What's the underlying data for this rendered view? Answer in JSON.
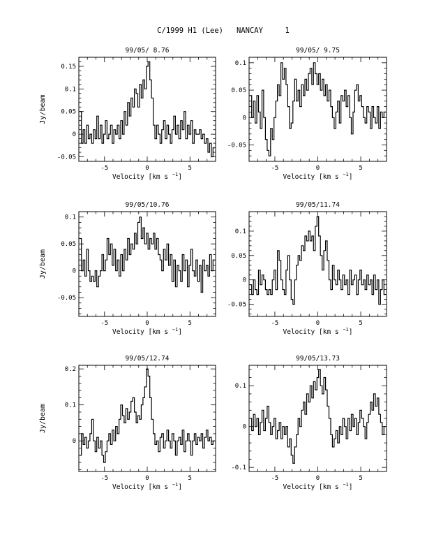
{
  "page": {
    "title": "C/1999 H1 (Lee)   NANCAY     1"
  },
  "axes": {
    "xlabel_main": "Velocity [km s",
    "xlabel_exp": "−1",
    "xlabel_close": "]",
    "ylabel": "Jy/beam"
  },
  "chart_data": [
    {
      "type": "line",
      "step": true,
      "title": "99/05/ 8.76",
      "xlim": [
        -8,
        8
      ],
      "ylim": [
        -0.06,
        0.17
      ],
      "xticks": [
        -5,
        0,
        5
      ],
      "yticks": [
        -0.05,
        0,
        0.05,
        0.1,
        0.15
      ],
      "ytick_labels": [
        "-0.05",
        "0",
        "0.05",
        "0.1",
        "0.15"
      ],
      "x": [
        -7.8,
        -7.6,
        -7.4,
        -7.2,
        -7.0,
        -6.8,
        -6.6,
        -6.4,
        -6.2,
        -6.0,
        -5.8,
        -5.6,
        -5.4,
        -5.2,
        -5.0,
        -4.8,
        -4.6,
        -4.4,
        -4.2,
        -4.0,
        -3.8,
        -3.6,
        -3.4,
        -3.2,
        -3.0,
        -2.8,
        -2.6,
        -2.4,
        -2.2,
        -2.0,
        -1.8,
        -1.6,
        -1.4,
        -1.2,
        -1.0,
        -0.8,
        -0.6,
        -0.4,
        -0.2,
        0.0,
        0.2,
        0.4,
        0.6,
        0.8,
        1.0,
        1.2,
        1.4,
        1.6,
        1.8,
        2.0,
        2.2,
        2.4,
        2.6,
        2.8,
        3.0,
        3.2,
        3.4,
        3.6,
        3.8,
        4.0,
        4.2,
        4.4,
        4.6,
        4.8,
        5.0,
        5.2,
        5.4,
        5.6,
        5.8,
        6.0,
        6.2,
        6.4,
        6.6,
        6.8,
        7.0,
        7.2,
        7.4,
        7.6,
        7.8
      ],
      "y": [
        0.05,
        -0.02,
        0.01,
        -0.02,
        0.02,
        -0.01,
        0.0,
        -0.02,
        0.01,
        -0.01,
        0.04,
        -0.01,
        0.02,
        -0.02,
        0.0,
        0.03,
        -0.01,
        0.0,
        0.02,
        -0.02,
        0.01,
        0.0,
        0.02,
        -0.01,
        0.03,
        0.0,
        0.05,
        0.02,
        0.07,
        0.04,
        0.08,
        0.06,
        0.1,
        0.09,
        0.06,
        0.11,
        0.08,
        0.12,
        0.1,
        0.15,
        0.16,
        0.12,
        0.08,
        0.02,
        -0.01,
        0.02,
        0.0,
        -0.02,
        0.01,
        0.03,
        -0.01,
        0.02,
        0.0,
        -0.02,
        0.01,
        0.04,
        0.0,
        0.02,
        -0.01,
        0.03,
        0.01,
        0.05,
        -0.01,
        0.02,
        0.0,
        0.03,
        -0.02,
        0.01,
        0.0,
        0.0,
        0.01,
        -0.01,
        0.0,
        -0.02,
        -0.01,
        -0.04,
        -0.02,
        -0.05,
        -0.03
      ]
    },
    {
      "type": "line",
      "step": true,
      "title": "99/05/ 9.75",
      "xlim": [
        -8,
        8
      ],
      "ylim": [
        -0.08,
        0.11
      ],
      "xticks": [
        -5,
        0,
        5
      ],
      "yticks": [
        -0.05,
        0,
        0.05,
        0.1
      ],
      "ytick_labels": [
        "-0.05",
        "0",
        "0.05",
        "0.1"
      ],
      "x": [
        -7.8,
        -7.6,
        -7.4,
        -7.2,
        -7.0,
        -6.8,
        -6.6,
        -6.4,
        -6.2,
        -6.0,
        -5.8,
        -5.6,
        -5.4,
        -5.2,
        -5.0,
        -4.8,
        -4.6,
        -4.4,
        -4.2,
        -4.0,
        -3.8,
        -3.6,
        -3.4,
        -3.2,
        -3.0,
        -2.8,
        -2.6,
        -2.4,
        -2.2,
        -2.0,
        -1.8,
        -1.6,
        -1.4,
        -1.2,
        -1.0,
        -0.8,
        -0.6,
        -0.4,
        -0.2,
        0.0,
        0.2,
        0.4,
        0.6,
        0.8,
        1.0,
        1.2,
        1.4,
        1.6,
        1.8,
        2.0,
        2.2,
        2.4,
        2.6,
        2.8,
        3.0,
        3.2,
        3.4,
        3.6,
        3.8,
        4.0,
        4.2,
        4.4,
        4.6,
        4.8,
        5.0,
        5.2,
        5.4,
        5.6,
        5.8,
        6.0,
        6.2,
        6.4,
        6.6,
        6.8,
        7.0,
        7.2,
        7.4,
        7.6,
        7.8
      ],
      "y": [
        0.04,
        0.0,
        0.03,
        -0.01,
        0.04,
        0.01,
        -0.02,
        0.05,
        0.0,
        -0.04,
        -0.06,
        -0.07,
        -0.02,
        -0.04,
        0.0,
        0.03,
        0.06,
        0.04,
        0.1,
        0.07,
        0.09,
        0.06,
        0.02,
        -0.02,
        -0.01,
        0.03,
        0.07,
        0.03,
        0.05,
        0.02,
        0.06,
        0.04,
        0.07,
        0.05,
        0.08,
        0.09,
        0.06,
        0.1,
        0.08,
        0.06,
        0.08,
        0.05,
        0.07,
        0.04,
        0.06,
        0.03,
        0.05,
        0.02,
        0.0,
        -0.02,
        0.01,
        0.03,
        -0.01,
        0.04,
        0.03,
        0.05,
        0.02,
        0.04,
        0.0,
        -0.03,
        0.01,
        0.05,
        0.06,
        0.03,
        0.04,
        0.02,
        0.0,
        -0.01,
        0.02,
        0.01,
        -0.02,
        0.02,
        0.0,
        -0.01,
        0.02,
        -0.02,
        0.01,
        0.0,
        0.01
      ]
    },
    {
      "type": "line",
      "step": true,
      "title": "99/05/10.76",
      "xlim": [
        -8,
        8
      ],
      "ylim": [
        -0.085,
        0.11
      ],
      "xticks": [
        -5,
        0,
        5
      ],
      "yticks": [
        -0.05,
        0,
        0.05,
        0.1
      ],
      "ytick_labels": [
        "-0.05",
        "0",
        "0.05",
        "0.1"
      ],
      "x": [
        -7.8,
        -7.6,
        -7.4,
        -7.2,
        -7.0,
        -6.8,
        -6.6,
        -6.4,
        -6.2,
        -6.0,
        -5.8,
        -5.6,
        -5.4,
        -5.2,
        -5.0,
        -4.8,
        -4.6,
        -4.4,
        -4.2,
        -4.0,
        -3.8,
        -3.6,
        -3.4,
        -3.2,
        -3.0,
        -2.8,
        -2.6,
        -2.4,
        -2.2,
        -2.0,
        -1.8,
        -1.6,
        -1.4,
        -1.2,
        -1.0,
        -0.8,
        -0.6,
        -0.4,
        -0.2,
        0.0,
        0.2,
        0.4,
        0.6,
        0.8,
        1.0,
        1.2,
        1.4,
        1.6,
        1.8,
        2.0,
        2.2,
        2.4,
        2.6,
        2.8,
        3.0,
        3.2,
        3.4,
        3.6,
        3.8,
        4.0,
        4.2,
        4.4,
        4.6,
        4.8,
        5.0,
        5.2,
        5.4,
        5.6,
        5.8,
        6.0,
        6.2,
        6.4,
        6.6,
        6.8,
        7.0,
        7.2,
        7.4,
        7.6,
        7.8
      ],
      "y": [
        0.06,
        0.0,
        0.02,
        -0.01,
        0.04,
        0.0,
        -0.02,
        -0.01,
        -0.02,
        0.0,
        -0.03,
        -0.01,
        0.0,
        0.03,
        0.0,
        0.02,
        0.06,
        0.03,
        0.05,
        0.01,
        0.04,
        0.0,
        0.02,
        -0.01,
        0.03,
        0.0,
        0.04,
        0.02,
        0.06,
        0.03,
        0.05,
        0.04,
        0.07,
        0.05,
        0.09,
        0.1,
        0.06,
        0.08,
        0.05,
        0.07,
        0.04,
        0.06,
        0.05,
        0.07,
        0.04,
        0.06,
        0.03,
        0.02,
        0.0,
        0.04,
        0.02,
        0.05,
        0.01,
        0.03,
        -0.02,
        0.02,
        -0.03,
        0.01,
        0.0,
        -0.02,
        0.03,
        0.0,
        0.02,
        -0.03,
        0.01,
        0.04,
        0.0,
        -0.01,
        0.02,
        -0.02,
        0.01,
        -0.04,
        0.02,
        0.0,
        0.01,
        -0.01,
        0.03,
        0.0,
        0.02
      ]
    },
    {
      "type": "line",
      "step": true,
      "title": "99/05/11.74",
      "xlim": [
        -8,
        8
      ],
      "ylim": [
        -0.075,
        0.14
      ],
      "xticks": [
        -5,
        0,
        5
      ],
      "yticks": [
        -0.05,
        0,
        0.05,
        0.1
      ],
      "ytick_labels": [
        "-0.05",
        "0",
        "0.05",
        "0.1"
      ],
      "x": [
        -7.8,
        -7.6,
        -7.4,
        -7.2,
        -7.0,
        -6.8,
        -6.6,
        -6.4,
        -6.2,
        -6.0,
        -5.8,
        -5.6,
        -5.4,
        -5.2,
        -5.0,
        -4.8,
        -4.6,
        -4.4,
        -4.2,
        -4.0,
        -3.8,
        -3.6,
        -3.4,
        -3.2,
        -3.0,
        -2.8,
        -2.6,
        -2.4,
        -2.2,
        -2.0,
        -1.8,
        -1.6,
        -1.4,
        -1.2,
        -1.0,
        -0.8,
        -0.6,
        -0.4,
        -0.2,
        0.0,
        0.2,
        0.4,
        0.6,
        0.8,
        1.0,
        1.2,
        1.4,
        1.6,
        1.8,
        2.0,
        2.2,
        2.4,
        2.6,
        2.8,
        3.0,
        3.2,
        3.4,
        3.6,
        3.8,
        4.0,
        4.2,
        4.4,
        4.6,
        4.8,
        5.0,
        5.2,
        5.4,
        5.6,
        5.8,
        6.0,
        6.2,
        6.4,
        6.6,
        6.8,
        7.0,
        7.2,
        7.4,
        7.6,
        7.8
      ],
      "y": [
        -0.01,
        -0.03,
        0.0,
        -0.02,
        -0.03,
        0.02,
        -0.01,
        0.01,
        0.0,
        -0.02,
        -0.03,
        -0.02,
        -0.03,
        0.0,
        0.02,
        -0.02,
        0.06,
        0.04,
        0.0,
        -0.02,
        -0.03,
        0.02,
        0.05,
        0.0,
        -0.04,
        -0.05,
        0.0,
        0.03,
        0.05,
        0.04,
        0.07,
        0.06,
        0.09,
        0.08,
        0.1,
        0.08,
        0.09,
        0.06,
        0.11,
        0.13,
        0.09,
        0.05,
        0.02,
        0.06,
        0.08,
        0.04,
        0.0,
        -0.02,
        0.03,
        0.0,
        -0.01,
        0.02,
        0.0,
        -0.02,
        0.01,
        -0.01,
        0.0,
        -0.03,
        0.02,
        -0.01,
        0.0,
        0.01,
        -0.03,
        0.0,
        0.02,
        -0.01,
        0.0,
        -0.02,
        0.01,
        -0.01,
        0.0,
        -0.03,
        0.01,
        -0.02,
        0.0,
        -0.05,
        -0.02,
        0.0,
        -0.03
      ]
    },
    {
      "type": "line",
      "step": true,
      "title": "99/05/12.74",
      "xlim": [
        -8,
        8
      ],
      "ylim": [
        -0.085,
        0.21
      ],
      "xticks": [
        -5,
        0,
        5
      ],
      "yticks": [
        0,
        0.1,
        0.2
      ],
      "ytick_labels": [
        "0",
        "0.1",
        "0.2"
      ],
      "x": [
        -7.8,
        -7.6,
        -7.4,
        -7.2,
        -7.0,
        -6.8,
        -6.6,
        -6.4,
        -6.2,
        -6.0,
        -5.8,
        -5.6,
        -5.4,
        -5.2,
        -5.0,
        -4.8,
        -4.6,
        -4.4,
        -4.2,
        -4.0,
        -3.8,
        -3.6,
        -3.4,
        -3.2,
        -3.0,
        -2.8,
        -2.6,
        -2.4,
        -2.2,
        -2.0,
        -1.8,
        -1.6,
        -1.4,
        -1.2,
        -1.0,
        -0.8,
        -0.6,
        -0.4,
        -0.2,
        0.0,
        0.2,
        0.4,
        0.6,
        0.8,
        1.0,
        1.2,
        1.4,
        1.6,
        1.8,
        2.0,
        2.2,
        2.4,
        2.6,
        2.8,
        3.0,
        3.2,
        3.4,
        3.6,
        3.8,
        4.0,
        4.2,
        4.4,
        4.6,
        4.8,
        5.0,
        5.2,
        5.4,
        5.6,
        5.8,
        6.0,
        6.2,
        6.4,
        6.6,
        6.8,
        7.0,
        7.2,
        7.4,
        7.6,
        7.8
      ],
      "y": [
        -0.04,
        0.02,
        -0.01,
        0.01,
        -0.02,
        0.0,
        0.02,
        0.06,
        0.0,
        -0.03,
        0.01,
        -0.02,
        0.0,
        -0.04,
        -0.06,
        -0.03,
        0.0,
        0.02,
        -0.01,
        0.03,
        0.0,
        0.04,
        0.02,
        0.06,
        0.1,
        0.07,
        0.05,
        0.09,
        0.06,
        0.08,
        0.11,
        0.12,
        0.08,
        0.05,
        0.07,
        0.06,
        0.1,
        0.12,
        0.15,
        0.2,
        0.18,
        0.12,
        0.06,
        0.02,
        -0.01,
        0.0,
        -0.03,
        0.01,
        0.02,
        -0.02,
        0.0,
        0.03,
        0.0,
        -0.02,
        0.02,
        0.0,
        -0.04,
        0.0,
        0.01,
        -0.01,
        0.03,
        -0.03,
        0.0,
        0.02,
        0.0,
        -0.04,
        0.0,
        0.02,
        -0.01,
        0.01,
        0.0,
        0.02,
        -0.02,
        0.01,
        0.03,
        0.0,
        0.01,
        -0.01,
        0.0
      ]
    },
    {
      "type": "line",
      "step": true,
      "title": "99/05/13.73",
      "xlim": [
        -8,
        8
      ],
      "ylim": [
        -0.11,
        0.15
      ],
      "xticks": [
        -5,
        0,
        5
      ],
      "yticks": [
        -0.1,
        0,
        0.1
      ],
      "ytick_labels": [
        "-0.1",
        "0",
        "0.1"
      ],
      "x": [
        -7.8,
        -7.6,
        -7.4,
        -7.2,
        -7.0,
        -6.8,
        -6.6,
        -6.4,
        -6.2,
        -6.0,
        -5.8,
        -5.6,
        -5.4,
        -5.2,
        -5.0,
        -4.8,
        -4.6,
        -4.4,
        -4.2,
        -4.0,
        -3.8,
        -3.6,
        -3.4,
        -3.2,
        -3.0,
        -2.8,
        -2.6,
        -2.4,
        -2.2,
        -2.0,
        -1.8,
        -1.6,
        -1.4,
        -1.2,
        -1.0,
        -0.8,
        -0.6,
        -0.4,
        -0.2,
        0.0,
        0.2,
        0.4,
        0.6,
        0.8,
        1.0,
        1.2,
        1.4,
        1.6,
        1.8,
        2.0,
        2.2,
        2.4,
        2.6,
        2.8,
        3.0,
        3.2,
        3.4,
        3.6,
        3.8,
        4.0,
        4.2,
        4.4,
        4.6,
        4.8,
        5.0,
        5.2,
        5.4,
        5.6,
        5.8,
        6.0,
        6.2,
        6.4,
        6.6,
        6.8,
        7.0,
        7.2,
        7.4,
        7.6,
        7.8
      ],
      "y": [
        0.02,
        -0.01,
        0.03,
        0.0,
        0.02,
        -0.02,
        0.01,
        0.04,
        -0.01,
        0.02,
        0.05,
        0.01,
        -0.02,
        0.0,
        0.02,
        -0.03,
        -0.01,
        0.01,
        -0.03,
        0.0,
        -0.02,
        0.0,
        -0.05,
        -0.03,
        -0.07,
        -0.09,
        -0.05,
        -0.02,
        0.02,
        0.0,
        0.04,
        0.06,
        0.03,
        0.08,
        0.06,
        0.1,
        0.07,
        0.11,
        0.09,
        0.12,
        0.14,
        0.1,
        0.08,
        0.12,
        0.09,
        0.05,
        0.02,
        -0.02,
        -0.05,
        -0.03,
        -0.01,
        -0.04,
        0.0,
        -0.02,
        0.02,
        0.0,
        -0.03,
        0.02,
        -0.01,
        0.03,
        0.0,
        0.02,
        -0.02,
        0.01,
        0.04,
        0.02,
        0.0,
        -0.03,
        0.01,
        0.03,
        0.06,
        0.04,
        0.08,
        0.05,
        0.07,
        0.03,
        0.01,
        -0.02,
        0.0
      ]
    }
  ]
}
